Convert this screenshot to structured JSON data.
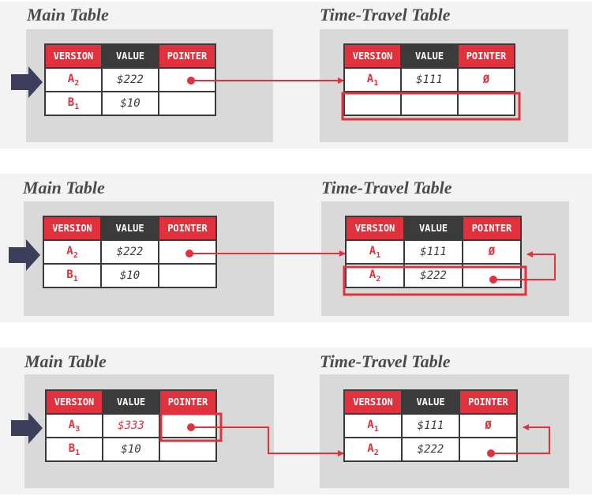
{
  "colors": {
    "accent": "#e0313c",
    "header_dark": "#3b3b3b",
    "arrow_marker": "#3b3f5c"
  },
  "panels": [
    {
      "main": {
        "title": "Main Table",
        "headers": [
          "VERSION",
          "VALUE",
          "POINTER"
        ],
        "rows": [
          {
            "version": "A",
            "sub": "2",
            "value": "$222",
            "pointer": ""
          },
          {
            "version": "B",
            "sub": "1",
            "value": "$10",
            "pointer": ""
          }
        ]
      },
      "travel": {
        "title": "Time-Travel Table",
        "headers": [
          "VERSION",
          "VALUE",
          "POINTER"
        ],
        "rows": [
          {
            "version": "A",
            "sub": "1",
            "value": "$111",
            "pointer": "Ø"
          },
          {
            "version": "",
            "sub": "",
            "value": "",
            "pointer": ""
          }
        ]
      }
    },
    {
      "main": {
        "title": "Main Table",
        "headers": [
          "VERSION",
          "VALUE",
          "POINTER"
        ],
        "rows": [
          {
            "version": "A",
            "sub": "2",
            "value": "$222",
            "pointer": ""
          },
          {
            "version": "B",
            "sub": "1",
            "value": "$10",
            "pointer": ""
          }
        ]
      },
      "travel": {
        "title": "Time-Travel Table",
        "headers": [
          "VERSION",
          "VALUE",
          "POINTER"
        ],
        "rows": [
          {
            "version": "A",
            "sub": "1",
            "value": "$111",
            "pointer": "Ø"
          },
          {
            "version": "A",
            "sub": "2",
            "value": "$222",
            "pointer": ""
          }
        ]
      }
    },
    {
      "main": {
        "title": "Main Table",
        "headers": [
          "VERSION",
          "VALUE",
          "POINTER"
        ],
        "rows": [
          {
            "version": "A",
            "sub": "3",
            "value": "$333",
            "pointer": ""
          },
          {
            "version": "B",
            "sub": "1",
            "value": "$10",
            "pointer": ""
          }
        ]
      },
      "travel": {
        "title": "Time-Travel Table",
        "headers": [
          "VERSION",
          "VALUE",
          "POINTER"
        ],
        "rows": [
          {
            "version": "A",
            "sub": "1",
            "value": "$111",
            "pointer": "Ø"
          },
          {
            "version": "A",
            "sub": "2",
            "value": "$222",
            "pointer": ""
          }
        ]
      }
    }
  ]
}
